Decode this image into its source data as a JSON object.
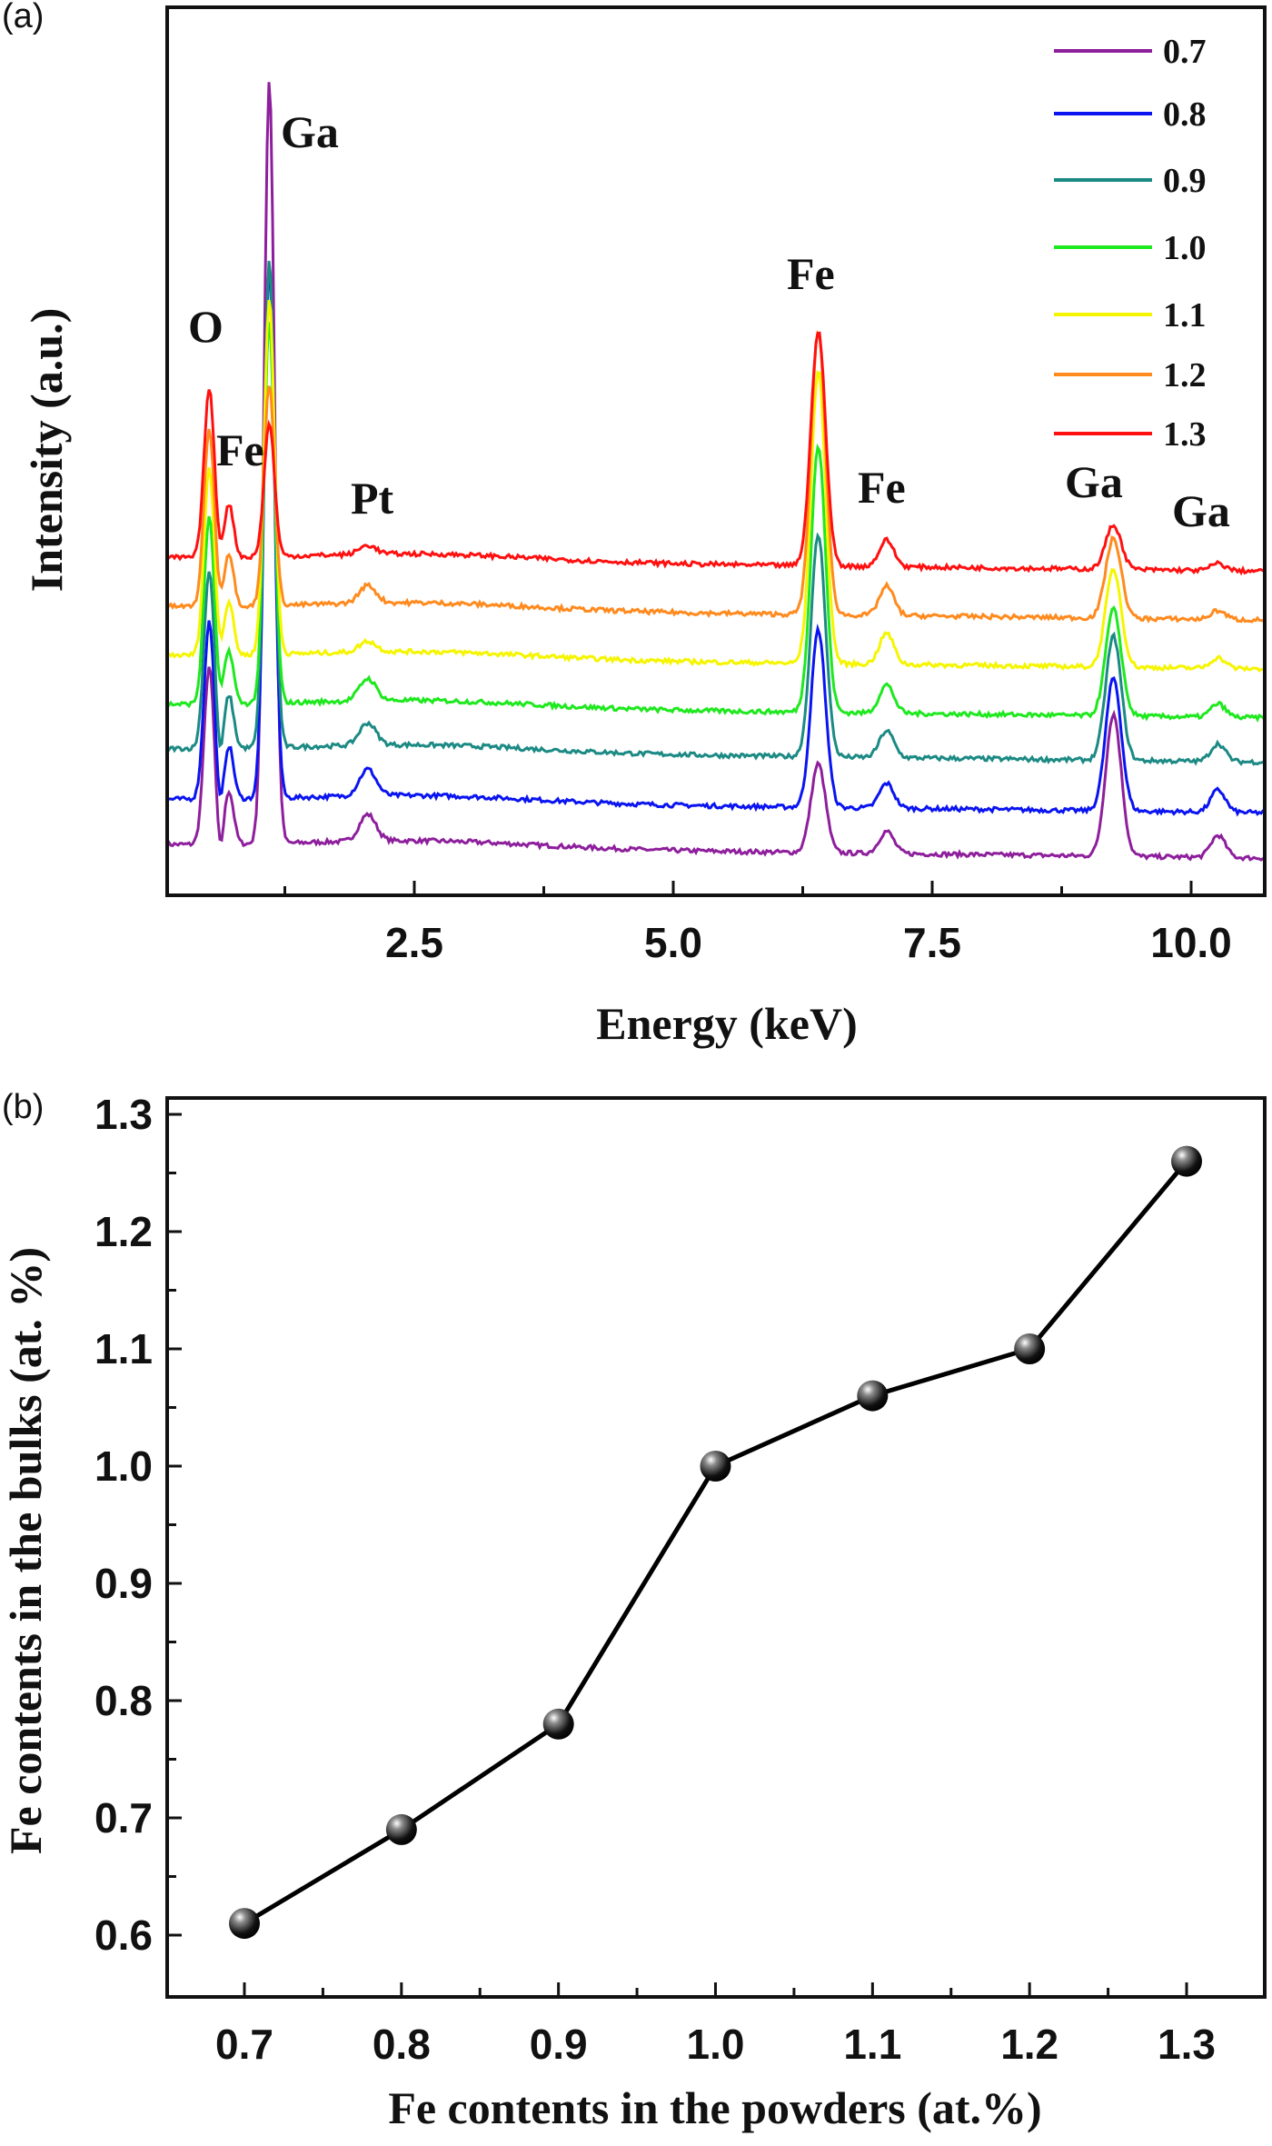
{
  "chart_data": [
    {
      "panel_label": "(a)",
      "type": "line",
      "xlabel": "Energy (keV)",
      "ylabel": "Intensity (a.u.)",
      "xlim": [
        0.1,
        10.7
      ],
      "ylim": [
        0,
        100
      ],
      "xticks": [
        "2.5",
        "5.0",
        "7.5",
        "10.0"
      ],
      "xtick_values": [
        2.5,
        5.0,
        7.5,
        10.0
      ],
      "grid": false,
      "legend_position": "top-right",
      "note": "",
      "peaks": [
        {
          "label": "O",
          "energy": 0.52
        },
        {
          "label": "Fe",
          "energy": 0.71
        },
        {
          "label": "Ga",
          "energy": 1.1
        },
        {
          "label": "Pt",
          "energy": 2.05
        },
        {
          "label": "Fe",
          "energy": 6.4
        },
        {
          "label": "Fe",
          "energy": 7.06
        },
        {
          "label": "Ga",
          "energy": 9.25
        },
        {
          "label": "Ga",
          "energy": 10.26
        }
      ],
      "series": [
        {
          "name": "0.7",
          "color": "#8e1f9c",
          "baseline": 5.7,
          "peak_heights": [
            20,
            6,
            86,
            3,
            10,
            2.5,
            16,
            2.5
          ]
        },
        {
          "name": "0.8",
          "color": "#0a14f0",
          "baseline": 10.8,
          "peak_heights": [
            20,
            6,
            60,
            3,
            20,
            2.8,
            15,
            2.5
          ]
        },
        {
          "name": "0.9",
          "color": "#1c8a84",
          "baseline": 16.5,
          "peak_heights": [
            20,
            6,
            55,
            2.5,
            25,
            3,
            14,
            2
          ]
        },
        {
          "name": "1.0",
          "color": "#1ee81e",
          "baseline": 21.5,
          "peak_heights": [
            21,
            6,
            43,
            2.5,
            30,
            3.2,
            12,
            1.5
          ]
        },
        {
          "name": "1.1",
          "color": "#f5f500",
          "baseline": 27,
          "peak_heights": [
            21,
            6,
            40,
            1.2,
            33,
            3.5,
            11,
            1.2
          ]
        },
        {
          "name": "1.2",
          "color": "#ff8a1e",
          "baseline": 32.5,
          "peak_heights": [
            20,
            6,
            25,
            2,
            32,
            3.3,
            9,
            1
          ]
        },
        {
          "name": "1.3",
          "color": "#ff1010",
          "baseline": 38,
          "peak_heights": [
            19,
            6,
            15,
            1,
            26.5,
            3,
            5,
            0.8
          ]
        }
      ]
    },
    {
      "panel_label": "(b)",
      "type": "line",
      "xlabel": "Fe contents in the powders (at.%)",
      "ylabel": "Fe contents in the bulks (at. %)",
      "xlim": [
        0.7,
        1.3
      ],
      "ylim": [
        0.6,
        1.3
      ],
      "xticks": [
        "0.7",
        "0.8",
        "0.9",
        "1.0",
        "1.1",
        "1.2",
        "1.3"
      ],
      "yticks": [
        "0.6",
        "0.7",
        "0.8",
        "0.9",
        "1.0",
        "1.1",
        "1.2",
        "1.3"
      ],
      "grid": false,
      "x": [
        0.7,
        0.8,
        0.9,
        1.0,
        1.1,
        1.2,
        1.3
      ],
      "y": [
        0.61,
        0.69,
        0.78,
        1.0,
        1.06,
        1.1,
        1.26
      ],
      "marker": "sphere",
      "line_color": "#000000"
    }
  ]
}
